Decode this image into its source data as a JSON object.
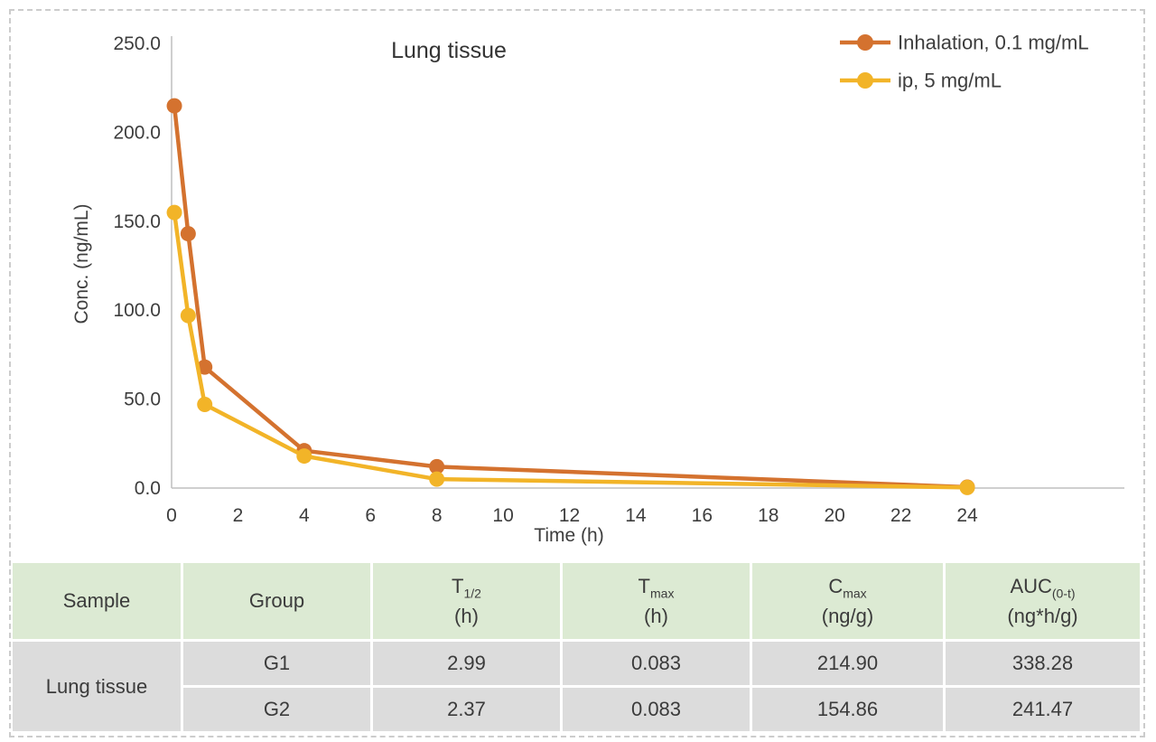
{
  "figure": {
    "background": "#ffffff",
    "border_color": "#cccccc"
  },
  "chart_data": {
    "type": "line",
    "title": "Lung tissue",
    "xlabel": "Time (h)",
    "ylabel": "Conc. (ng/mL)",
    "xlim": [
      0,
      24
    ],
    "ylim": [
      0,
      250
    ],
    "x_ticks": [
      0,
      2,
      4,
      6,
      8,
      10,
      12,
      14,
      16,
      18,
      20,
      22,
      24
    ],
    "y_ticks": [
      0,
      50,
      100,
      150,
      200,
      250
    ],
    "y_tick_labels": [
      "0.0",
      "50.0",
      "100.0",
      "150.0",
      "200.0",
      "250.0"
    ],
    "grid": false,
    "legend_position": "top-right",
    "axis_color": "#bfbfbf",
    "text_color": "#3d3d3d",
    "series": [
      {
        "name": "Inhalation, 0.1 mg/mL",
        "color": "#d4722f",
        "x": [
          0.083,
          0.5,
          1,
          4,
          8,
          24
        ],
        "y": [
          214.9,
          143,
          68,
          21,
          12,
          0.5
        ]
      },
      {
        "name": "ip, 5 mg/mL",
        "color": "#f2b428",
        "x": [
          0.083,
          0.5,
          1,
          4,
          8,
          24
        ],
        "y": [
          154.9,
          97,
          47,
          18,
          5,
          0.3
        ]
      }
    ]
  },
  "table": {
    "header_bg": "#dcead3",
    "row_bg": "#dcdcdc",
    "headers": [
      {
        "base": "Sample",
        "sub": "",
        "unit": ""
      },
      {
        "base": "Group",
        "sub": "",
        "unit": ""
      },
      {
        "base": "T",
        "sub": "1/2",
        "unit": "(h)"
      },
      {
        "base": "T",
        "sub": "max",
        "unit": "(h)"
      },
      {
        "base": "C",
        "sub": "max",
        "unit": "(ng/g)"
      },
      {
        "base": "AUC",
        "sub": "(0-t)",
        "unit": "(ng*h/g)"
      }
    ],
    "sample_label": "Lung tissue",
    "rows": [
      {
        "group": "G1",
        "t_half": "2.99",
        "t_max": "0.083",
        "c_max": "214.90",
        "auc": "338.28"
      },
      {
        "group": "G2",
        "t_half": "2.37",
        "t_max": "0.083",
        "c_max": "154.86",
        "auc": "241.47"
      }
    ]
  }
}
